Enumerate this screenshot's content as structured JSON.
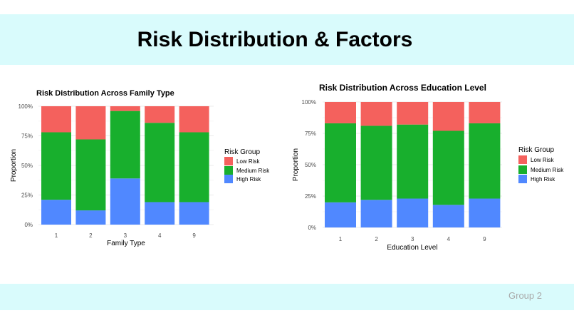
{
  "page": {
    "title": "Risk Distribution & Factors",
    "footer": "Group 2"
  },
  "colors": {
    "band": "#d9fbfc",
    "low_risk": "#f4615d",
    "medium_risk": "#18af2d",
    "high_risk": "#5088ff",
    "grid": "#ebebeb"
  },
  "chart_data": [
    {
      "type": "bar",
      "stacked": true,
      "title": "Risk Distribution Across Family Type",
      "xlabel": "Family Type",
      "ylabel": "Proportion",
      "categories": [
        "1",
        "2",
        "3",
        "4",
        "9"
      ],
      "ylim": [
        0,
        1
      ],
      "yticks": [
        "0%",
        "25%",
        "50%",
        "75%",
        "100%"
      ],
      "legend_title": "Risk Group",
      "legend_position": "right",
      "grid": true,
      "series": [
        {
          "name": "High Risk",
          "values": [
            0.21,
            0.12,
            0.39,
            0.19,
            0.19
          ]
        },
        {
          "name": "Medium Risk",
          "values": [
            0.57,
            0.6,
            0.57,
            0.67,
            0.59
          ]
        },
        {
          "name": "Low Risk",
          "values": [
            0.22,
            0.28,
            0.04,
            0.14,
            0.22
          ]
        }
      ]
    },
    {
      "type": "bar",
      "stacked": true,
      "title": "Risk Distribution Across Education Level",
      "xlabel": "Education Level",
      "ylabel": "Proportion",
      "categories": [
        "1",
        "2",
        "3",
        "4",
        "9"
      ],
      "ylim": [
        0,
        1
      ],
      "yticks": [
        "0%",
        "25%",
        "50%",
        "75%",
        "100%"
      ],
      "legend_title": "Risk Group",
      "legend_position": "right",
      "grid": true,
      "series": [
        {
          "name": "High Risk",
          "values": [
            0.2,
            0.22,
            0.23,
            0.18,
            0.23
          ]
        },
        {
          "name": "Medium Risk",
          "values": [
            0.63,
            0.59,
            0.59,
            0.59,
            0.6
          ]
        },
        {
          "name": "Low Risk",
          "values": [
            0.17,
            0.19,
            0.18,
            0.23,
            0.17
          ]
        }
      ]
    }
  ]
}
